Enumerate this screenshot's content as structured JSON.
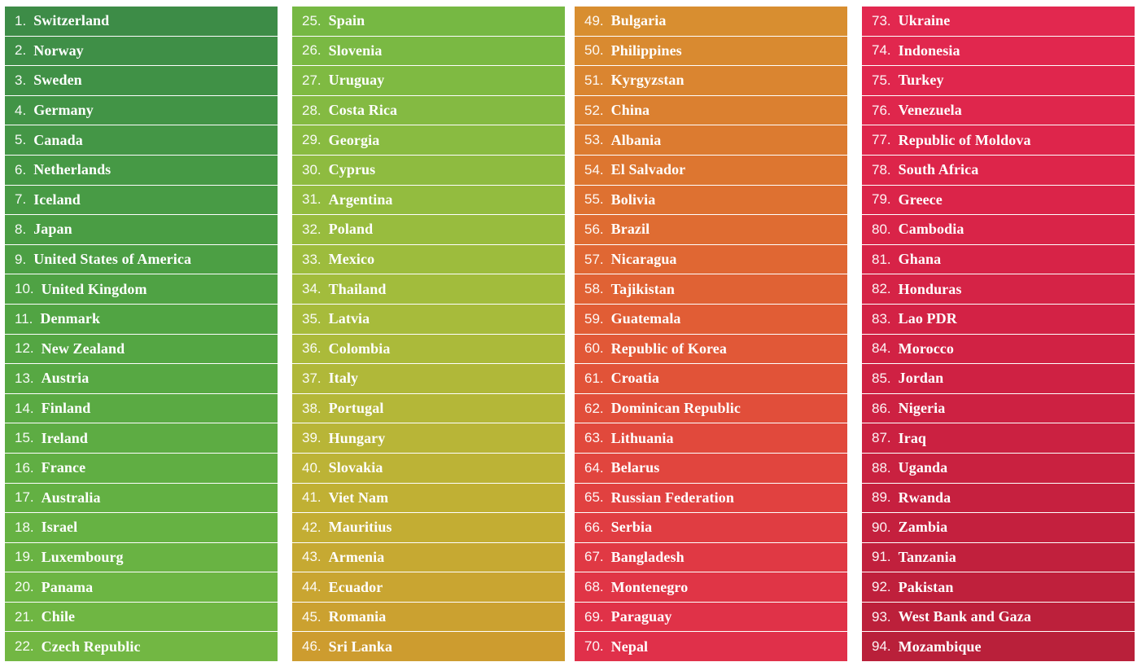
{
  "columns": [
    {
      "items": [
        {
          "rank": "1.",
          "name": "Switzerland",
          "color": "#3d8c47"
        },
        {
          "rank": "2.",
          "name": "Norway",
          "color": "#3f8f47"
        },
        {
          "rank": "3.",
          "name": "Sweden",
          "color": "#409146"
        },
        {
          "rank": "4.",
          "name": "Germany",
          "color": "#429446"
        },
        {
          "rank": "5.",
          "name": "Canada",
          "color": "#449646"
        },
        {
          "rank": "6.",
          "name": "Netherlands",
          "color": "#469945"
        },
        {
          "rank": "7.",
          "name": "Iceland",
          "color": "#489b45"
        },
        {
          "rank": "8.",
          "name": "Japan",
          "color": "#4a9d44"
        },
        {
          "rank": "9.",
          "name": "United States of America",
          "color": "#4c9f44"
        },
        {
          "rank": "10.",
          "name": "United Kingdom",
          "color": "#4fa244"
        },
        {
          "rank": "11.",
          "name": "Denmark",
          "color": "#51a443"
        },
        {
          "rank": "12.",
          "name": "New Zealand",
          "color": "#54a643"
        },
        {
          "rank": "13.",
          "name": "Austria",
          "color": "#57a843"
        },
        {
          "rank": "14.",
          "name": "Finland",
          "color": "#5aaa43"
        },
        {
          "rank": "15.",
          "name": "Ireland",
          "color": "#5dac43"
        },
        {
          "rank": "16.",
          "name": "France",
          "color": "#60ae43"
        },
        {
          "rank": "17.",
          "name": "Australia",
          "color": "#63b043"
        },
        {
          "rank": "18.",
          "name": "Israel",
          "color": "#66b243"
        },
        {
          "rank": "19.",
          "name": "Luxembourg",
          "color": "#69b343"
        },
        {
          "rank": "20.",
          "name": "Panama",
          "color": "#6cb543"
        },
        {
          "rank": "21.",
          "name": "Chile",
          "color": "#6fb643"
        },
        {
          "rank": "22.",
          "name": "Czech Republic",
          "color": "#72b743"
        }
      ]
    },
    {
      "items": [
        {
          "rank": "25.",
          "name": "Spain",
          "color": "#76b843"
        },
        {
          "rank": "26.",
          "name": "Slovenia",
          "color": "#7ab943"
        },
        {
          "rank": "27.",
          "name": "Uruguay",
          "color": "#7fba42"
        },
        {
          "rank": "28.",
          "name": "Costa Rica",
          "color": "#84ba42"
        },
        {
          "rank": "29.",
          "name": "Georgia",
          "color": "#89bb41"
        },
        {
          "rank": "30.",
          "name": "Cyprus",
          "color": "#8ebb40"
        },
        {
          "rank": "31.",
          "name": "Argentina",
          "color": "#93bc3f"
        },
        {
          "rank": "32.",
          "name": "Poland",
          "color": "#98bc3e"
        },
        {
          "rank": "33.",
          "name": "Mexico",
          "color": "#9dbc3d"
        },
        {
          "rank": "34.",
          "name": "Thailand",
          "color": "#a2bc3c"
        },
        {
          "rank": "35.",
          "name": "Latvia",
          "color": "#a7bb3b"
        },
        {
          "rank": "36.",
          "name": "Colombia",
          "color": "#abba3a"
        },
        {
          "rank": "37.",
          "name": "Italy",
          "color": "#b0b839"
        },
        {
          "rank": "38.",
          "name": "Portugal",
          "color": "#b4b738"
        },
        {
          "rank": "39.",
          "name": "Hungary",
          "color": "#b8b537"
        },
        {
          "rank": "40.",
          "name": "Slovakia",
          "color": "#bcb336"
        },
        {
          "rank": "41.",
          "name": "Viet Nam",
          "color": "#c0b034"
        },
        {
          "rank": "42.",
          "name": "Mauritius",
          "color": "#c3ad33"
        },
        {
          "rank": "43.",
          "name": "Armenia",
          "color": "#c6a932"
        },
        {
          "rank": "44.",
          "name": "Ecuador",
          "color": "#c9a531"
        },
        {
          "rank": "45.",
          "name": "Romania",
          "color": "#cba130"
        },
        {
          "rank": "46.",
          "name": "Sri Lanka",
          "color": "#cd9c2f"
        }
      ]
    },
    {
      "items": [
        {
          "rank": "49.",
          "name": "Bulgaria",
          "color": "#d88e30"
        },
        {
          "rank": "50.",
          "name": "Philippines",
          "color": "#d98a30"
        },
        {
          "rank": "51.",
          "name": "Kyrgyzstan",
          "color": "#da8530"
        },
        {
          "rank": "52.",
          "name": "China",
          "color": "#db8030"
        },
        {
          "rank": "53.",
          "name": "Albania",
          "color": "#dc7b30"
        },
        {
          "rank": "54.",
          "name": "El Salvador",
          "color": "#dd7630"
        },
        {
          "rank": "55.",
          "name": "Bolivia",
          "color": "#de7131"
        },
        {
          "rank": "56.",
          "name": "Brazil",
          "color": "#df6c32"
        },
        {
          "rank": "57.",
          "name": "Nicaragua",
          "color": "#e06733"
        },
        {
          "rank": "58.",
          "name": "Tajikistan",
          "color": "#e06234"
        },
        {
          "rank": "59.",
          "name": "Guatemala",
          "color": "#e15d35"
        },
        {
          "rank": "60.",
          "name": "Republic of Korea",
          "color": "#e15837"
        },
        {
          "rank": "61.",
          "name": "Croatia",
          "color": "#e15338"
        },
        {
          "rank": "62.",
          "name": "Dominican Republic",
          "color": "#e14e3a"
        },
        {
          "rank": "63.",
          "name": "Lithuania",
          "color": "#e1493c"
        },
        {
          "rank": "64.",
          "name": "Belarus",
          "color": "#e1453e"
        },
        {
          "rank": "65.",
          "name": "Russian Federation",
          "color": "#e14140"
        },
        {
          "rank": "66.",
          "name": "Serbia",
          "color": "#e03d42"
        },
        {
          "rank": "67.",
          "name": "Bangladesh",
          "color": "#e03944"
        },
        {
          "rank": "68.",
          "name": "Montenegro",
          "color": "#e03546"
        },
        {
          "rank": "69.",
          "name": "Paraguay",
          "color": "#e03248"
        },
        {
          "rank": "70.",
          "name": "Nepal",
          "color": "#e0304a"
        }
      ]
    },
    {
      "items": [
        {
          "rank": "73.",
          "name": "Ukraine",
          "color": "#e2284f"
        },
        {
          "rank": "74.",
          "name": "Indonesia",
          "color": "#e1274e"
        },
        {
          "rank": "75.",
          "name": "Turkey",
          "color": "#e0264d"
        },
        {
          "rank": "76.",
          "name": "Venezuela",
          "color": "#df264c"
        },
        {
          "rank": "77.",
          "name": "Republic of Moldova",
          "color": "#de254b"
        },
        {
          "rank": "78.",
          "name": "South Africa",
          "color": "#dd254a"
        },
        {
          "rank": "79.",
          "name": "Greece",
          "color": "#db2449"
        },
        {
          "rank": "80.",
          "name": "Cambodia",
          "color": "#d92448"
        },
        {
          "rank": "81.",
          "name": "Ghana",
          "color": "#d72347"
        },
        {
          "rank": "82.",
          "name": "Honduras",
          "color": "#d52346"
        },
        {
          "rank": "83.",
          "name": "Lao PDR",
          "color": "#d32245"
        },
        {
          "rank": "84.",
          "name": "Morocco",
          "color": "#d12244"
        },
        {
          "rank": "85.",
          "name": "Jordan",
          "color": "#cf2143"
        },
        {
          "rank": "86.",
          "name": "Nigeria",
          "color": "#cd2142"
        },
        {
          "rank": "87.",
          "name": "Iraq",
          "color": "#cb2141"
        },
        {
          "rank": "88.",
          "name": "Uganda",
          "color": "#c92140"
        },
        {
          "rank": "89.",
          "name": "Rwanda",
          "color": "#c6203f"
        },
        {
          "rank": "90.",
          "name": "Zambia",
          "color": "#c4203e"
        },
        {
          "rank": "91.",
          "name": "Tanzania",
          "color": "#c1203d"
        },
        {
          "rank": "92.",
          "name": "Pakistan",
          "color": "#bf203c"
        },
        {
          "rank": "93.",
          "name": "West Bank and Gaza",
          "color": "#bc203b"
        },
        {
          "rank": "94.",
          "name": "Mozambique",
          "color": "#b9203a"
        }
      ]
    }
  ]
}
